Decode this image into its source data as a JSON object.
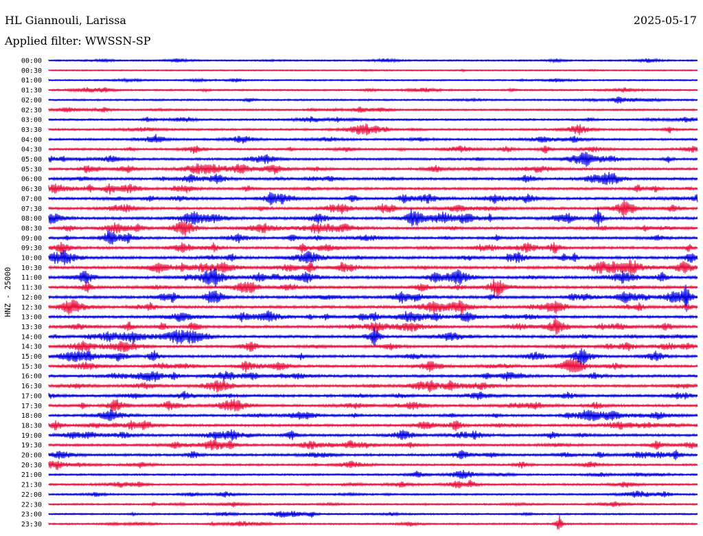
{
  "header": {
    "station": "HL Giannouli, Larissa",
    "date": "2025-05-17",
    "filter_prefix": "Applied filter: ",
    "filter_name": "WWSSN-SP"
  },
  "chart_data": {
    "type": "line",
    "title": "HL Giannouli, Larissa",
    "ylabel": "HNZ - 25000",
    "xlabel": "",
    "rows": [
      "00:00",
      "00:30",
      "01:00",
      "01:30",
      "02:00",
      "02:30",
      "03:00",
      "03:30",
      "04:00",
      "04:30",
      "05:00",
      "05:30",
      "06:00",
      "06:30",
      "07:00",
      "07:30",
      "08:00",
      "08:30",
      "09:00",
      "09:30",
      "10:00",
      "10:30",
      "11:00",
      "11:30",
      "12:00",
      "12:30",
      "13:00",
      "13:30",
      "14:00",
      "14:30",
      "15:00",
      "15:30",
      "16:00",
      "16:30",
      "17:00",
      "17:30",
      "18:00",
      "18:30",
      "19:00",
      "19:30",
      "20:00",
      "20:30",
      "21:00",
      "21:30",
      "22:00",
      "22:30",
      "23:00",
      "23:30"
    ],
    "activity": [
      0.35,
      0.15,
      0.3,
      0.4,
      0.45,
      0.45,
      0.55,
      0.6,
      0.65,
      0.65,
      0.75,
      0.8,
      0.85,
      0.85,
      0.85,
      0.9,
      0.95,
      0.9,
      0.9,
      0.9,
      1.0,
      1.0,
      1.0,
      0.95,
      1.0,
      0.95,
      0.9,
      0.9,
      0.9,
      0.85,
      0.85,
      0.85,
      0.9,
      0.85,
      0.85,
      0.85,
      0.8,
      0.85,
      0.85,
      0.8,
      0.8,
      0.6,
      0.55,
      0.6,
      0.5,
      0.4,
      0.4,
      0.45
    ],
    "series_colors": [
      "#0000e0",
      "#e8103c"
    ],
    "grid": false,
    "legend": "none"
  }
}
